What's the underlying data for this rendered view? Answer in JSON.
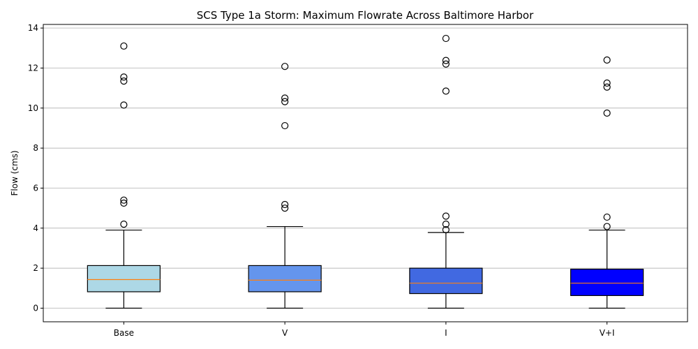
{
  "chart_data": {
    "type": "box",
    "title": "SCS Type 1a Storm: Maximum Flowrate Across Baltimore Harbor",
    "xlabel": "",
    "ylabel": "Flow (cms)",
    "ylim": [
      -0.68,
      14.18
    ],
    "yticks": [
      0,
      2,
      4,
      6,
      8,
      10,
      12,
      14
    ],
    "grid": "y",
    "categories": [
      "Base",
      "V",
      "I",
      "V+I"
    ],
    "series": [
      {
        "category": "Base",
        "color": "#add8e6",
        "whisker_low": 0.0,
        "q1": 0.82,
        "median": 1.43,
        "q3": 2.13,
        "whisker_high": 3.9,
        "outliers": [
          4.2,
          5.25,
          5.4,
          10.15,
          11.35,
          11.55,
          13.1
        ]
      },
      {
        "category": "V",
        "color": "#6495ed",
        "whisker_low": 0.0,
        "q1": 0.82,
        "median": 1.4,
        "q3": 2.13,
        "whisker_high": 4.08,
        "outliers": [
          5.0,
          5.18,
          9.12,
          10.32,
          10.5,
          12.08
        ]
      },
      {
        "category": "I",
        "color": "#4169e1",
        "whisker_low": 0.0,
        "q1": 0.73,
        "median": 1.25,
        "q3": 2.0,
        "whisker_high": 3.78,
        "outliers": [
          3.92,
          4.2,
          4.6,
          10.85,
          12.2,
          12.38,
          13.48
        ]
      },
      {
        "category": "V+I",
        "color": "#0000ff",
        "whisker_low": 0.0,
        "q1": 0.63,
        "median": 1.25,
        "q3": 1.95,
        "whisker_high": 3.9,
        "outliers": [
          4.08,
          4.55,
          9.75,
          11.05,
          11.25,
          12.4
        ]
      }
    ]
  }
}
